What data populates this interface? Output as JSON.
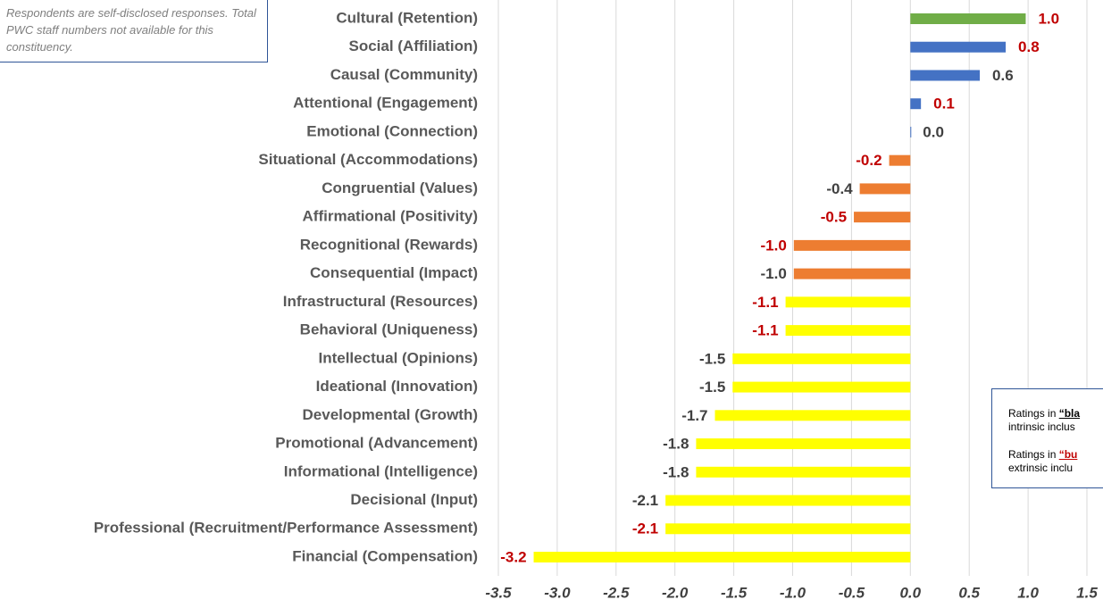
{
  "chart_data": {
    "type": "barh",
    "note": "Respondents are self-disclosed responses. Total PWC staff numbers not available for this constituency.",
    "side_note": [
      [
        "Ratings in ",
        "“bla",
        "intrinsic inclus"
      ],
      [
        "Ratings in ",
        "“bu",
        "extrinsic inclu"
      ]
    ],
    "categories": [
      "Cultural (Retention)",
      "Social (Affiliation)",
      "Causal (Community)",
      "Attentional (Engagement)",
      "Emotional (Connection)",
      "Situational (Accommodations)",
      "Congruential (Values)",
      "Affirmational (Positivity)",
      "Recognitional (Rewards)",
      "Consequential (Impact)",
      "Infrastructural (Resources)",
      "Behavioral (Uniqueness)",
      "Intellectual (Opinions)",
      "Ideational (Innovation)",
      "Developmental (Growth)",
      "Promotional (Advancement)",
      "Informational (Intelligence)",
      "Decisional (Input)",
      "Professional (Recruitment/Performance Assessment)",
      "Financial (Compensation)"
    ],
    "values": [
      0.98,
      0.81,
      0.59,
      0.09,
      0.0,
      -0.18,
      -0.43,
      -0.48,
      -0.99,
      -0.99,
      -1.06,
      -1.06,
      -1.51,
      -1.51,
      -1.66,
      -1.82,
      -1.82,
      -2.08,
      -2.08,
      -3.2
    ],
    "value_labels": [
      "1.0",
      "0.8",
      "0.6",
      "0.1",
      "0.0",
      "-0.2",
      "-0.4",
      "-0.5",
      "-1.0",
      "-1.0",
      "-1.1",
      "-1.1",
      "-1.5",
      "-1.5",
      "-1.7",
      "-1.8",
      "-1.8",
      "-2.1",
      "-2.1",
      "-3.2"
    ],
    "colors": [
      "#70ad47",
      "#4472c4",
      "#4472c4",
      "#4472c4",
      "#4472c4",
      "#ed7d31",
      "#ed7d31",
      "#ed7d31",
      "#ed7d31",
      "#ed7d31",
      "#ffff00",
      "#ffff00",
      "#ffff00",
      "#ffff00",
      "#ffff00",
      "#ffff00",
      "#ffff00",
      "#ffff00",
      "#ffff00",
      "#ffff00"
    ],
    "label_colors": [
      "#c00000",
      "#c00000",
      "#404040",
      "#c00000",
      "#404040",
      "#c00000",
      "#404040",
      "#c00000",
      "#c00000",
      "#404040",
      "#c00000",
      "#c00000",
      "#404040",
      "#404040",
      "#404040",
      "#404040",
      "#404040",
      "#404040",
      "#c00000",
      "#c00000"
    ],
    "xlim": [
      -3.5,
      1.5
    ],
    "xticks": [
      -3.5,
      {
        "value": -3,
        "label": "-3.0"
      },
      -2.5,
      {
        "value": -2,
        "label": "-2.0"
      },
      -1.5,
      {
        "value": -1,
        "label": "-1.0"
      },
      -0.5,
      {
        "value": 0,
        "label": "0.0"
      },
      0.5,
      {
        "value": 1,
        "label": "1.0"
      },
      1.5
    ],
    "grid": true
  }
}
